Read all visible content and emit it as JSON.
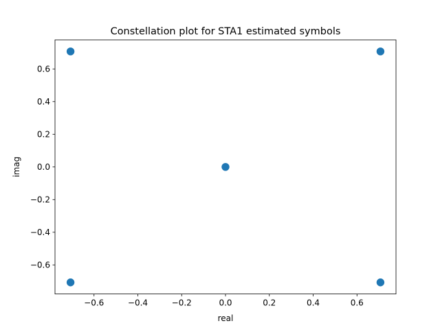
{
  "chart_data": {
    "type": "scatter",
    "title": "Constellation plot for STA1 estimated symbols",
    "xlabel": "real",
    "ylabel": "imag",
    "xlim": [
      -0.778,
      0.778
    ],
    "ylim": [
      -0.778,
      0.778
    ],
    "xticks": [
      -0.6,
      -0.4,
      -0.2,
      0.0,
      0.2,
      0.4,
      0.6
    ],
    "xtick_labels": [
      "−0.6",
      "−0.4",
      "−0.2",
      "0.0",
      "0.2",
      "0.4",
      "0.6"
    ],
    "yticks": [
      -0.6,
      -0.4,
      -0.2,
      0.0,
      0.2,
      0.4,
      0.6
    ],
    "ytick_labels": [
      "−0.6",
      "−0.4",
      "−0.2",
      "0.0",
      "0.2",
      "0.4",
      "0.6"
    ],
    "grid": false,
    "legend": false,
    "marker_color": "#1f77b4",
    "points": [
      {
        "x": -0.7071,
        "y": 0.7071
      },
      {
        "x": 0.7071,
        "y": 0.7071
      },
      {
        "x": 0.0,
        "y": 0.0
      },
      {
        "x": -0.7071,
        "y": -0.7071
      },
      {
        "x": 0.7071,
        "y": -0.7071
      }
    ]
  }
}
